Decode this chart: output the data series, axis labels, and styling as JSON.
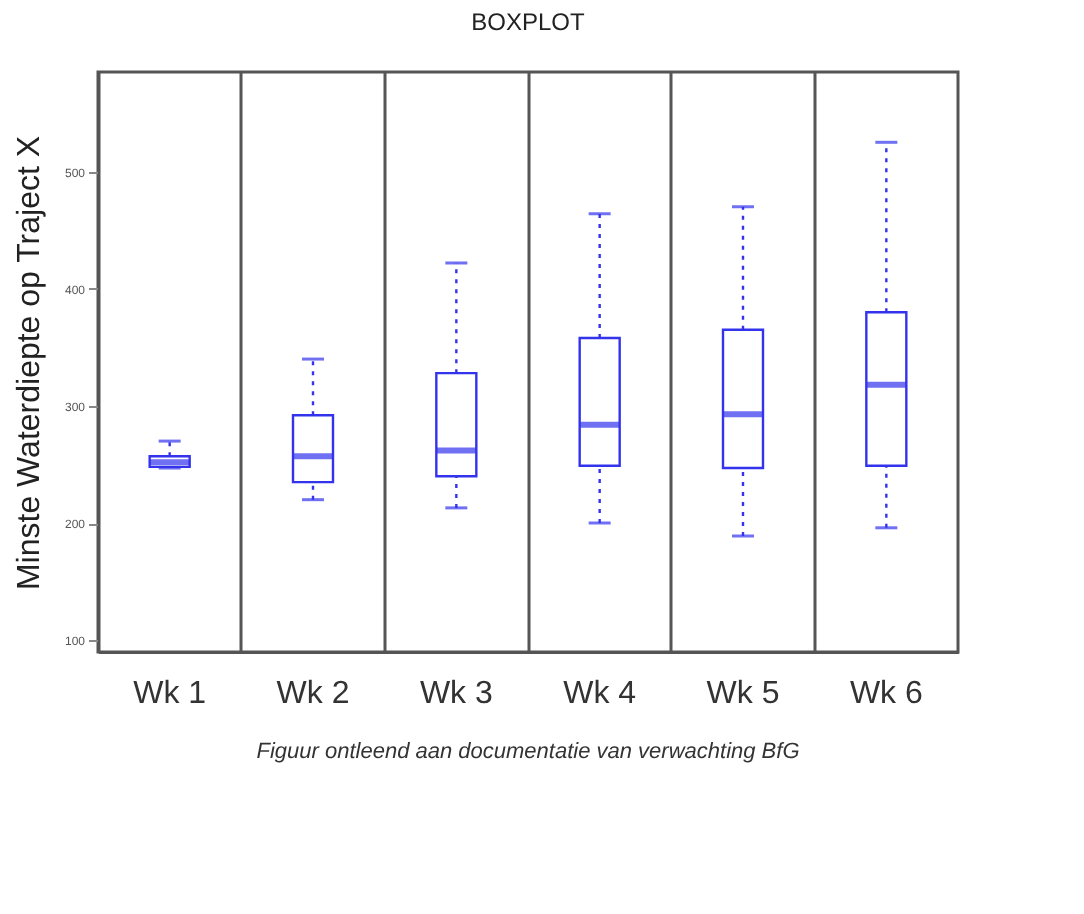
{
  "chart_data": {
    "type": "box",
    "title": "BOXPLOT",
    "ylabel": "Minste Waterdiepte op Traject X",
    "categories": [
      "Wk 1",
      "Wk 2",
      "Wk 3",
      "Wk 4",
      "Wk 5",
      "Wk 6"
    ],
    "series": [
      {
        "color": "#3333ee",
        "boxes": [
          {
            "low": 247,
            "q1": 248,
            "median": 252,
            "q3": 257,
            "high": 270
          },
          {
            "low": 220,
            "q1": 235,
            "median": 257,
            "q3": 292,
            "high": 340
          },
          {
            "low": 213,
            "q1": 240,
            "median": 262,
            "q3": 328,
            "high": 422
          },
          {
            "low": 200,
            "q1": 249,
            "median": 284,
            "q3": 358,
            "high": 464
          },
          {
            "low": 189,
            "q1": 247,
            "median": 293,
            "q3": 365,
            "high": 470
          },
          {
            "low": 196,
            "q1": 249,
            "median": 318,
            "q3": 380,
            "high": 525
          }
        ]
      }
    ],
    "ylim": [
      90,
      585
    ],
    "yticks": [
      100,
      200,
      300,
      400,
      500
    ],
    "grid": "x",
    "line_style": "dotted",
    "annotations": [
      "Figuur ontleend aan documentatie van verwachting BfG"
    ]
  }
}
